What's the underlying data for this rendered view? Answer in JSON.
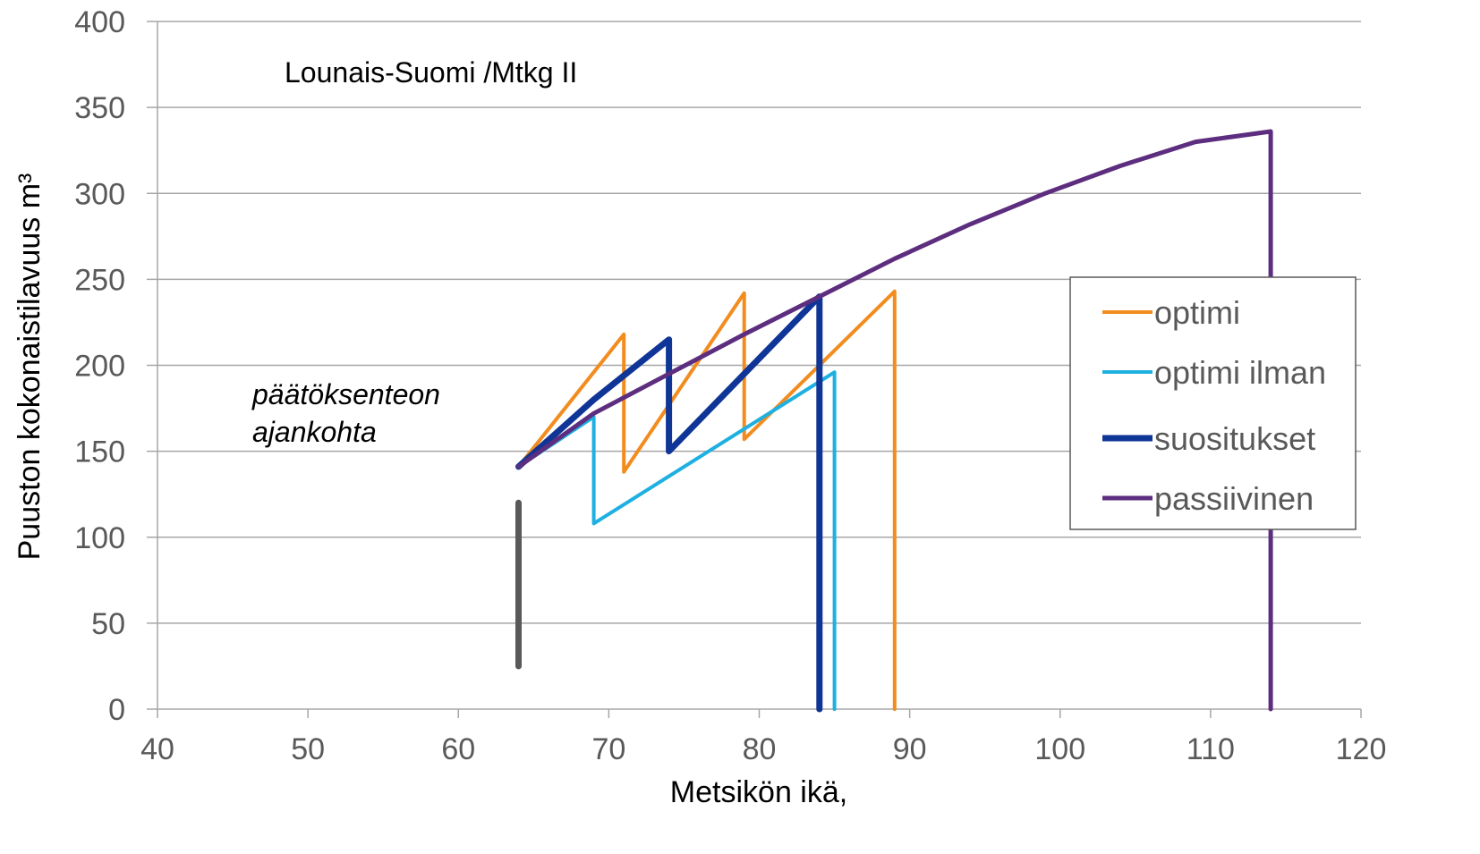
{
  "chart_data": {
    "type": "line",
    "title": "",
    "xlabel": "Metsikön ikä,",
    "ylabel": "Puuston kokonaistilavuus  m³",
    "xlim": [
      40,
      120
    ],
    "ylim": [
      0,
      400
    ],
    "xticks": [
      40,
      50,
      60,
      70,
      80,
      90,
      100,
      110,
      120
    ],
    "yticks": [
      0,
      50,
      100,
      150,
      200,
      250,
      300,
      350,
      400
    ],
    "grid": "horizontal",
    "legend_position": "right",
    "annotations": [
      {
        "text": "Lounais-Suomi /Mtkg II",
        "style": "normal"
      },
      {
        "text": "päätöksenteon",
        "style": "italic"
      },
      {
        "text": "ajankohta",
        "style": "italic"
      }
    ],
    "marker_line": {
      "x": 64,
      "y_from": 25,
      "y_to": 120,
      "color": "#595959"
    },
    "series": [
      {
        "name": "optimi",
        "color": "#F28C1E",
        "width": 4,
        "points": [
          [
            64,
            141
          ],
          [
            71,
            218
          ],
          [
            71,
            138
          ],
          [
            79,
            242
          ],
          [
            79,
            157
          ],
          [
            89,
            243
          ],
          [
            89,
            0
          ]
        ]
      },
      {
        "name": "optimi ilman",
        "color": "#1DB0E0",
        "width": 4,
        "points": [
          [
            64,
            141
          ],
          [
            69,
            170
          ],
          [
            69,
            108
          ],
          [
            85,
            196
          ],
          [
            85,
            0
          ]
        ]
      },
      {
        "name": "suositukset",
        "color": "#0F3597",
        "width": 7,
        "points": [
          [
            64,
            141
          ],
          [
            69,
            180
          ],
          [
            74,
            215
          ],
          [
            74,
            150
          ],
          [
            84,
            240
          ],
          [
            84,
            0
          ]
        ]
      },
      {
        "name": "passiivinen",
        "color": "#5D2E7F",
        "width": 5,
        "points": [
          [
            64,
            141
          ],
          [
            69,
            172
          ],
          [
            74,
            195
          ],
          [
            79,
            218
          ],
          [
            84,
            240
          ],
          [
            89,
            262
          ],
          [
            94,
            282
          ],
          [
            99,
            300
          ],
          [
            104,
            316
          ],
          [
            109,
            330
          ],
          [
            114,
            336
          ],
          [
            114,
            0
          ]
        ]
      }
    ]
  }
}
